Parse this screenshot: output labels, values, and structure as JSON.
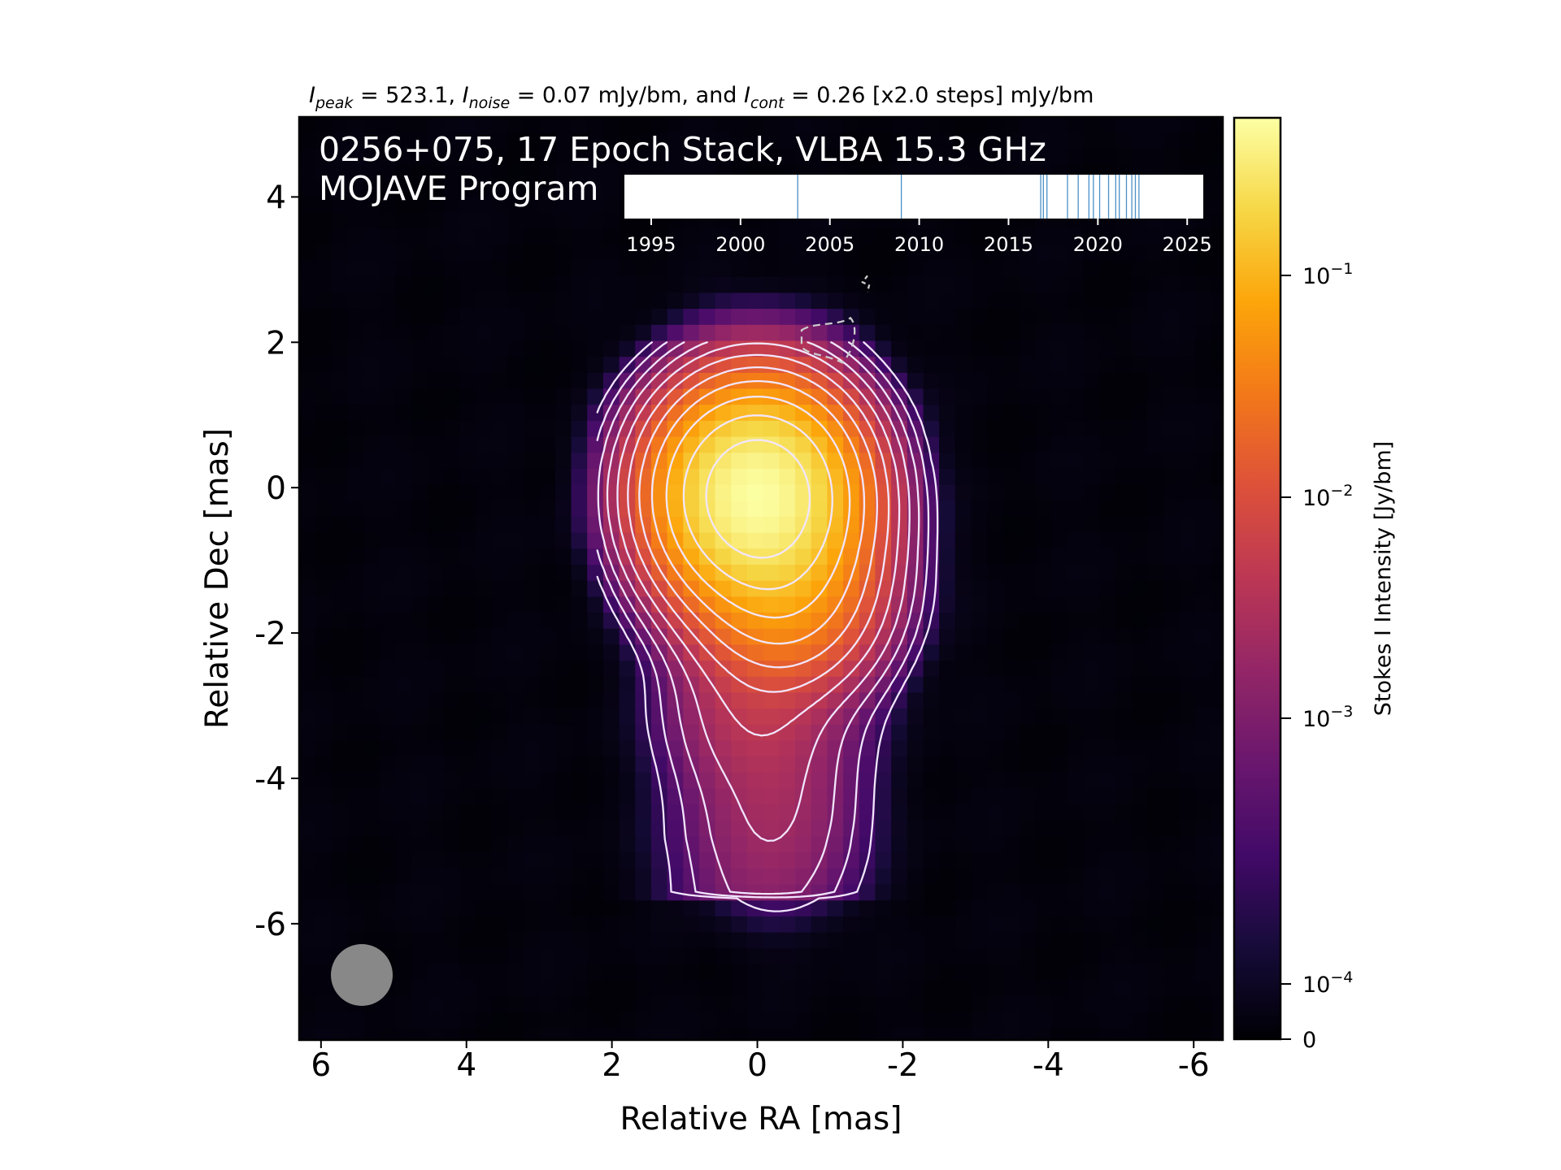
{
  "chart_data": {
    "type": "heatmap",
    "header": {
      "peak_sym": "I",
      "peak_sub": "peak",
      "peak_val": " = 523.1, ",
      "noise_sym": "I",
      "noise_sub": "noise",
      "noise_val": " = 0.07 mJy/bm, and ",
      "cont_sym": "I",
      "cont_sub": "cont",
      "cont_val": " = 0.26 [x2.0 steps] mJy/bm"
    },
    "title_line1": "0256+075, 17 Epoch Stack, VLBA 15.3 GHz",
    "title_line2": "MOJAVE Program",
    "xlabel": "Relative RA [mas]",
    "ylabel": "Relative Dec [mas]",
    "xlim": [
      6.3,
      -6.4
    ],
    "ylim": [
      -7.6,
      5.1
    ],
    "x_ticks": [
      {
        "v": 6,
        "label": "6"
      },
      {
        "v": 4,
        "label": "4"
      },
      {
        "v": 2,
        "label": "2"
      },
      {
        "v": 0,
        "label": "0"
      },
      {
        "v": -2,
        "label": "-2"
      },
      {
        "v": -4,
        "label": "-4"
      },
      {
        "v": -6,
        "label": "-6"
      }
    ],
    "y_ticks": [
      {
        "v": 4,
        "label": "4"
      },
      {
        "v": 2,
        "label": "2"
      },
      {
        "v": 0,
        "label": "0"
      },
      {
        "v": -2,
        "label": "-2"
      },
      {
        "v": -4,
        "label": "-4"
      },
      {
        "v": -6,
        "label": "-6"
      }
    ],
    "colorbar": {
      "label": "Stokes I Intensity [Jy/bm]",
      "scale": "log",
      "colormap": "inferno",
      "ticks": [
        {
          "v": 0,
          "base": "0",
          "exp": ""
        },
        {
          "v": 0.0001,
          "base": "10",
          "exp": "−4"
        },
        {
          "v": 0.001,
          "base": "10",
          "exp": "−3"
        },
        {
          "v": 0.01,
          "base": "10",
          "exp": "−2"
        },
        {
          "v": 0.1,
          "base": "10",
          "exp": "−1"
        }
      ]
    },
    "source": {
      "peak_jy": 0.5231,
      "components": [
        {
          "x": 0.0,
          "y": -0.1,
          "amp": 0.5
        },
        {
          "x": -0.35,
          "y": -1.3,
          "amp": 0.06
        },
        {
          "x": 0.05,
          "y": -3.1,
          "amp": 0.003
        },
        {
          "x": -0.3,
          "y": -4.6,
          "amp": 0.0012
        }
      ]
    },
    "contours": {
      "base_mjy": 0.26,
      "step_factor": 2.0,
      "levels": 11,
      "color": "#f2e6ff"
    },
    "negative_contour": {
      "ra": -1.0,
      "dec": 2.0,
      "color": "#cccccc"
    },
    "beam": {
      "color": "#888888"
    },
    "timeline": {
      "xlim": [
        1993.5,
        2025.9
      ],
      "ticks": [
        1995,
        2000,
        2005,
        2010,
        2015,
        2020,
        2025
      ],
      "tick_labels": [
        "1995",
        "2000",
        "2005",
        "2010",
        "2015",
        "2020",
        "2025"
      ],
      "epochs": [
        2003.2,
        2009.0,
        2016.8,
        2016.95,
        2017.15,
        2018.3,
        2018.9,
        2019.5,
        2019.75,
        2020.1,
        2020.6,
        2021.0,
        2021.2,
        2021.6,
        2021.9,
        2022.1,
        2022.3
      ],
      "epoch_color": "#4a90c8"
    }
  }
}
